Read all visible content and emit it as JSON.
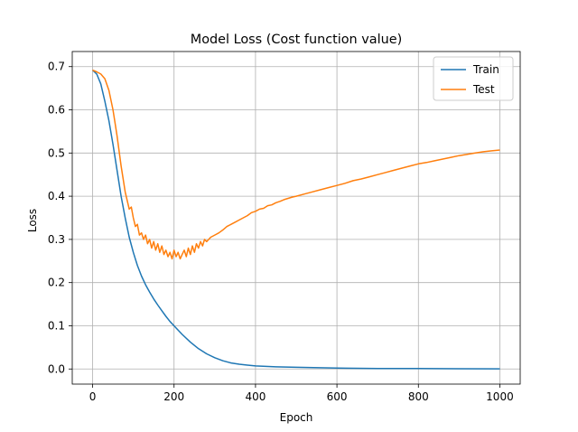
{
  "chart_data": {
    "type": "line",
    "title": "Model Loss (Cost function value)",
    "xlabel": "Epoch",
    "ylabel": "Loss",
    "xlim": [
      -50,
      1050
    ],
    "ylim": [
      -0.035,
      0.735
    ],
    "xticks": [
      0,
      200,
      400,
      600,
      800,
      1000
    ],
    "yticks": [
      0.0,
      0.1,
      0.2,
      0.3,
      0.4,
      0.5,
      0.6,
      0.7
    ],
    "grid": true,
    "legend_position": "top-right",
    "series": [
      {
        "name": "Train",
        "color": "#1f77b4",
        "x": [
          0,
          10,
          20,
          30,
          40,
          50,
          60,
          70,
          80,
          90,
          100,
          110,
          120,
          130,
          140,
          150,
          160,
          170,
          180,
          190,
          200,
          220,
          240,
          260,
          280,
          300,
          320,
          340,
          360,
          380,
          400,
          450,
          500,
          600,
          700,
          800,
          900,
          1000
        ],
        "y": [
          0.692,
          0.683,
          0.66,
          0.62,
          0.575,
          0.52,
          0.46,
          0.4,
          0.35,
          0.305,
          0.27,
          0.24,
          0.215,
          0.195,
          0.178,
          0.162,
          0.148,
          0.135,
          0.122,
          0.11,
          0.1,
          0.08,
          0.062,
          0.047,
          0.035,
          0.026,
          0.019,
          0.014,
          0.011,
          0.009,
          0.007,
          0.005,
          0.004,
          0.002,
          0.001,
          0.001,
          0.0005,
          0.0003
        ]
      },
      {
        "name": "Test",
        "color": "#ff7f0e",
        "x": [
          0,
          10,
          20,
          30,
          40,
          50,
          60,
          70,
          80,
          90,
          95,
          100,
          105,
          110,
          115,
          120,
          125,
          130,
          135,
          140,
          145,
          150,
          155,
          160,
          165,
          170,
          175,
          180,
          185,
          190,
          195,
          200,
          205,
          210,
          215,
          220,
          225,
          230,
          235,
          240,
          245,
          250,
          255,
          260,
          265,
          270,
          275,
          280,
          290,
          300,
          310,
          320,
          330,
          340,
          350,
          360,
          370,
          380,
          390,
          400,
          410,
          420,
          430,
          440,
          450,
          460,
          470,
          480,
          490,
          500,
          520,
          540,
          560,
          580,
          600,
          620,
          640,
          660,
          680,
          700,
          720,
          740,
          760,
          780,
          800,
          820,
          840,
          860,
          880,
          900,
          920,
          940,
          960,
          980,
          1000
        ],
        "y": [
          0.692,
          0.688,
          0.683,
          0.672,
          0.645,
          0.6,
          0.54,
          0.47,
          0.41,
          0.37,
          0.375,
          0.35,
          0.33,
          0.335,
          0.31,
          0.315,
          0.3,
          0.31,
          0.29,
          0.3,
          0.28,
          0.295,
          0.275,
          0.29,
          0.27,
          0.285,
          0.265,
          0.275,
          0.26,
          0.27,
          0.255,
          0.275,
          0.26,
          0.27,
          0.255,
          0.265,
          0.275,
          0.26,
          0.28,
          0.265,
          0.285,
          0.27,
          0.29,
          0.28,
          0.295,
          0.285,
          0.3,
          0.295,
          0.305,
          0.31,
          0.315,
          0.322,
          0.33,
          0.335,
          0.34,
          0.345,
          0.35,
          0.355,
          0.362,
          0.365,
          0.37,
          0.372,
          0.378,
          0.38,
          0.385,
          0.388,
          0.392,
          0.395,
          0.398,
          0.4,
          0.405,
          0.41,
          0.415,
          0.42,
          0.425,
          0.43,
          0.436,
          0.44,
          0.445,
          0.45,
          0.455,
          0.46,
          0.465,
          0.47,
          0.475,
          0.478,
          0.482,
          0.486,
          0.49,
          0.494,
          0.497,
          0.5,
          0.503,
          0.505,
          0.507
        ]
      }
    ]
  }
}
